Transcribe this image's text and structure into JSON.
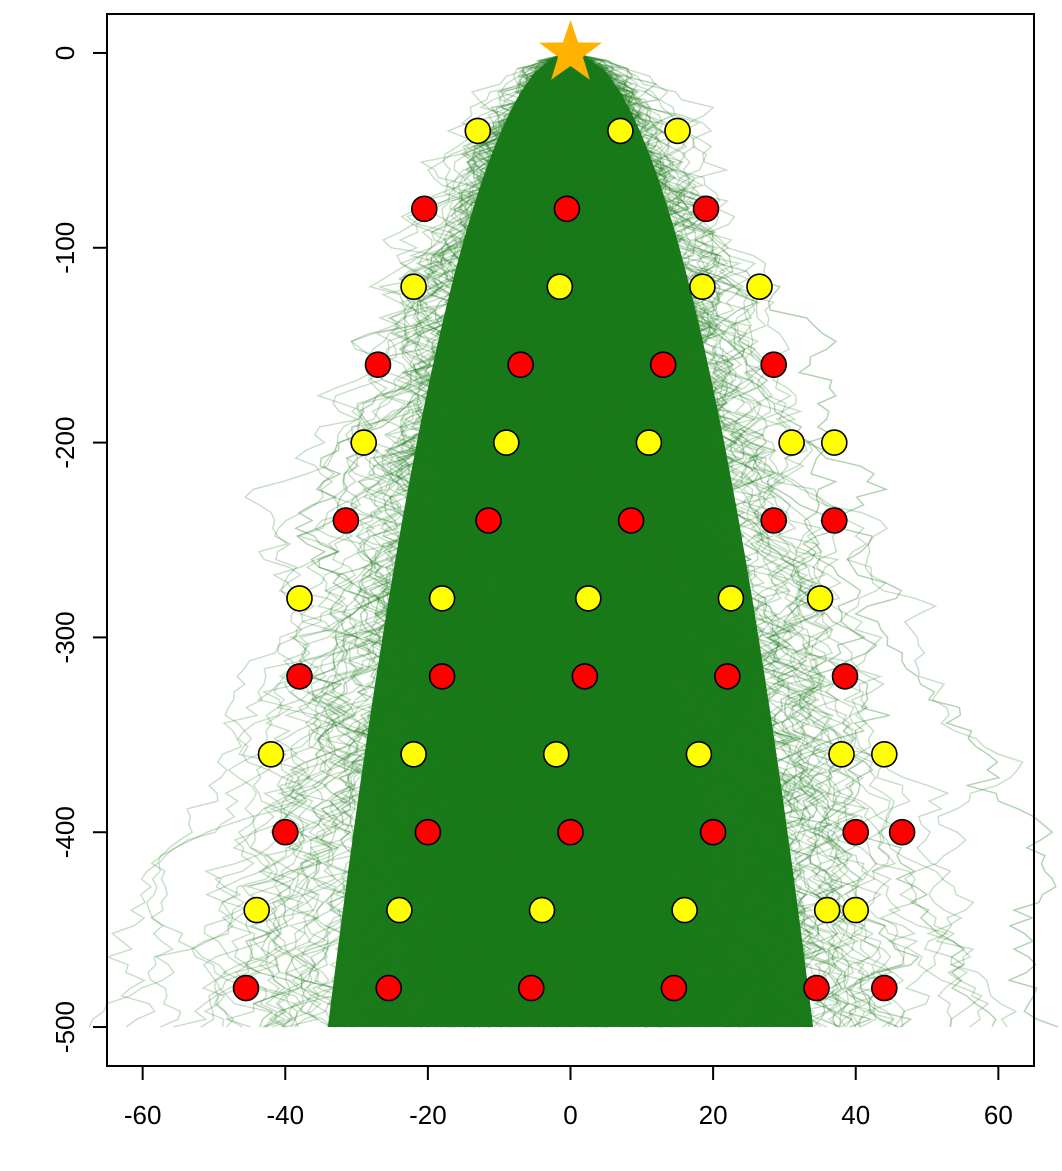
{
  "chart_data": {
    "type": "scatter",
    "title": "",
    "xlabel": "",
    "ylabel": "",
    "xlim": [
      -65,
      65
    ],
    "ylim": [
      -520,
      20
    ],
    "x_ticks": [
      -60,
      -40,
      -20,
      0,
      20,
      40,
      60
    ],
    "y_ticks": [
      0,
      -100,
      -200,
      -300,
      -400,
      -500
    ],
    "x_tick_labels": [
      "-60",
      "-40",
      "-20",
      "0",
      "20",
      "40",
      "60"
    ],
    "y_tick_labels": [
      "0",
      "-100",
      "-200",
      "-300",
      "-400",
      "-500"
    ],
    "grid": false,
    "legend": "none",
    "background_random_walks": {
      "color": "#1a7a1a",
      "start": [
        0,
        0
      ],
      "end_y": -500,
      "approx_spread_at_bottom": [
        -48,
        48
      ]
    },
    "star": {
      "x": 0,
      "y": 0,
      "color": "#FFB300"
    },
    "series": [
      {
        "color": "#FFFF00",
        "points": [
          [
            -13,
            -40
          ],
          [
            7,
            -40
          ],
          [
            15,
            -40
          ],
          [
            -22,
            -120
          ],
          [
            -1.5,
            -120
          ],
          [
            18.5,
            -120
          ],
          [
            26.5,
            -120
          ],
          [
            -29,
            -200
          ],
          [
            -9,
            -200
          ],
          [
            11,
            -200
          ],
          [
            31,
            -200
          ],
          [
            37,
            -200
          ],
          [
            -38,
            -280
          ],
          [
            -18,
            -280
          ],
          [
            2.5,
            -280
          ],
          [
            22.5,
            -280
          ],
          [
            35,
            -280
          ],
          [
            -42,
            -360
          ],
          [
            -22,
            -360
          ],
          [
            -2,
            -360
          ],
          [
            18,
            -360
          ],
          [
            38,
            -360
          ],
          [
            44,
            -360
          ],
          [
            -44,
            -440
          ],
          [
            -24,
            -440
          ],
          [
            -4,
            -440
          ],
          [
            16,
            -440
          ],
          [
            36,
            -440
          ],
          [
            40,
            -440
          ]
        ]
      },
      {
        "color": "#FF0000",
        "points": [
          [
            -20.5,
            -80
          ],
          [
            -0.5,
            -80
          ],
          [
            19,
            -80
          ],
          [
            -27,
            -160
          ],
          [
            -7,
            -160
          ],
          [
            13,
            -160
          ],
          [
            28.5,
            -160
          ],
          [
            -31.5,
            -240
          ],
          [
            -11.5,
            -240
          ],
          [
            8.5,
            -240
          ],
          [
            28.5,
            -240
          ],
          [
            37,
            -240
          ],
          [
            -38,
            -320
          ],
          [
            -18,
            -320
          ],
          [
            2,
            -320
          ],
          [
            22,
            -320
          ],
          [
            38.5,
            -320
          ],
          [
            -40,
            -400
          ],
          [
            -20,
            -400
          ],
          [
            0,
            -400
          ],
          [
            20,
            -400
          ],
          [
            40,
            -400
          ],
          [
            46.5,
            -400
          ],
          [
            -45.5,
            -480
          ],
          [
            -25.5,
            -480
          ],
          [
            -5.5,
            -480
          ],
          [
            14.5,
            -480
          ],
          [
            34.5,
            -480
          ],
          [
            44,
            -480
          ]
        ]
      }
    ]
  }
}
